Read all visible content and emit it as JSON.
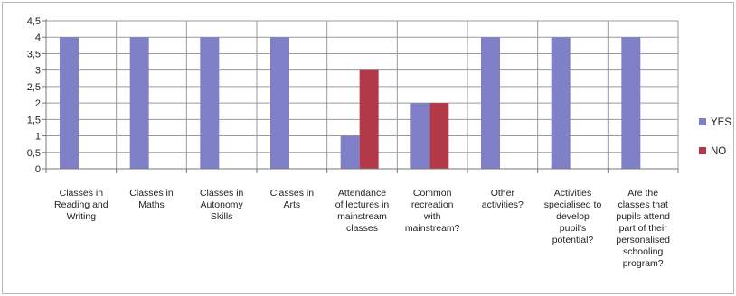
{
  "chart_data": {
    "type": "bar",
    "categories": [
      [
        "Classes in",
        "Reading and",
        "Writing"
      ],
      [
        "Classes in",
        "Maths"
      ],
      [
        "Classes in",
        "Autonomy",
        "Skills"
      ],
      [
        "Classes in",
        "Arts"
      ],
      [
        "Attendance",
        "of lectures in",
        "mainstream",
        "classes"
      ],
      [
        "Common",
        "recreation",
        "with",
        "mainstream?"
      ],
      [
        "Other",
        "activities?"
      ],
      [
        "Activities",
        "specialised to",
        "develop",
        "pupil's",
        "potential?"
      ],
      [
        "Are the",
        "classes that",
        "pupils attend",
        "part of their",
        "personalised",
        "schooling",
        "program?"
      ]
    ],
    "series": [
      {
        "name": "YES",
        "color": "#8080c8",
        "values": [
          4,
          4,
          4,
          4,
          1,
          2,
          4,
          4,
          4
        ]
      },
      {
        "name": "NO",
        "color": "#b23a48",
        "values": [
          null,
          null,
          null,
          null,
          3,
          2,
          null,
          null,
          null
        ]
      }
    ],
    "ylim": [
      0,
      4.5
    ],
    "yticks": [
      "0",
      "0,5",
      "1",
      "1,5",
      "2",
      "2,5",
      "3",
      "3,5",
      "4",
      "4,5"
    ],
    "grid": true,
    "legend_position": "right"
  }
}
